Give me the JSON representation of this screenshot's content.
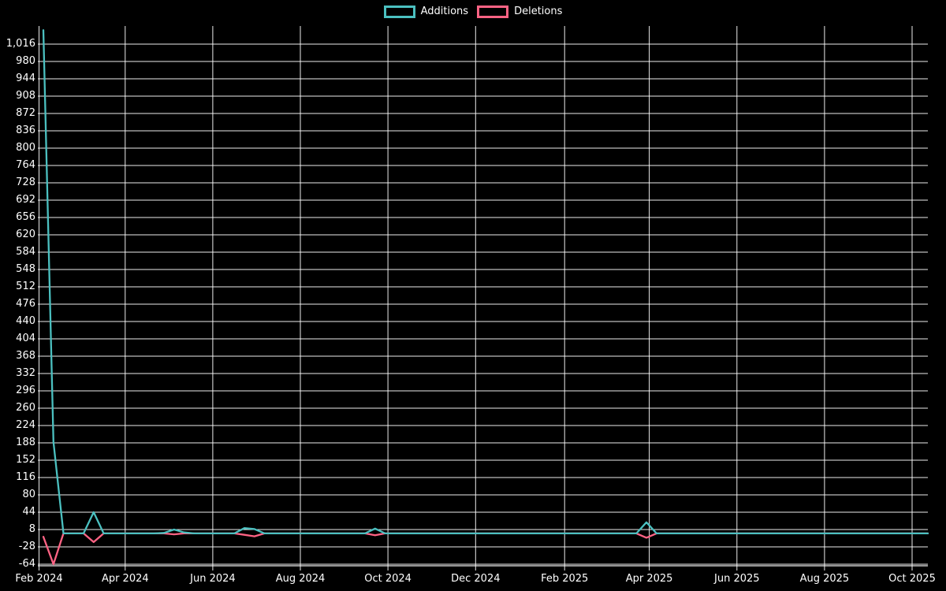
{
  "chart_data": {
    "type": "line",
    "title": "",
    "background_color": "#000000",
    "grid": true,
    "grid_color": "rgba(255,255,255,0.92)",
    "text_color": "#ffffff",
    "legend": {
      "position": "top",
      "items": [
        "Additions",
        "Deletions"
      ]
    },
    "x_axis": {
      "interval": "weekly",
      "start_date": "2024-02-04",
      "end_date": "2025-10-12",
      "ticks": [
        {
          "label": "Feb 2024",
          "date": "2024-02-01"
        },
        {
          "label": "Apr 2024",
          "date": "2024-04-01"
        },
        {
          "label": "Jun 2024",
          "date": "2024-06-01"
        },
        {
          "label": "Aug 2024",
          "date": "2024-08-01"
        },
        {
          "label": "Oct 2024",
          "date": "2024-10-01"
        },
        {
          "label": "Dec 2024",
          "date": "2024-12-01"
        },
        {
          "label": "Feb 2025",
          "date": "2025-02-01"
        },
        {
          "label": "Apr 2025",
          "date": "2025-04-01"
        },
        {
          "label": "Jun 2025",
          "date": "2025-06-01"
        },
        {
          "label": "Aug 2025",
          "date": "2025-08-01"
        },
        {
          "label": "Oct 2025",
          "date": "2025-10-01"
        }
      ]
    },
    "y_axis": {
      "min": -64,
      "max": 1016,
      "step": 36,
      "tick_values": [
        1016,
        980,
        944,
        908,
        872,
        836,
        800,
        764,
        728,
        692,
        656,
        620,
        584,
        548,
        512,
        476,
        440,
        404,
        368,
        332,
        296,
        260,
        224,
        188,
        152,
        116,
        80,
        44,
        8,
        -28,
        -64
      ],
      "tick_labels": [
        "1,016",
        "980",
        "944",
        "908",
        "872",
        "836",
        "800",
        "764",
        "728",
        "692",
        "656",
        "620",
        "584",
        "548",
        "512",
        "476",
        "440",
        "404",
        "368",
        "332",
        "296",
        "260",
        "224",
        "188",
        "152",
        "116",
        "80",
        "44",
        "8",
        "-28",
        "-64"
      ]
    },
    "series": [
      {
        "name": "Additions",
        "color": "#4BC0C0",
        "default_value": 0,
        "points": {
          "2024-02-04": 1045,
          "2024-02-11": 190,
          "2024-03-10": 44,
          "2024-04-28": 1,
          "2024-05-05": 8,
          "2024-05-12": 2,
          "2024-06-23": 11,
          "2024-06-30": 9,
          "2024-09-22": 10,
          "2025-03-30": 23
        }
      },
      {
        "name": "Deletions",
        "color": "#FF6384",
        "default_value": 0,
        "points": {
          "2024-02-04": -7,
          "2024-02-11": -64,
          "2024-03-10": -18,
          "2024-05-05": -2,
          "2024-06-23": -3,
          "2024-06-30": -6,
          "2024-09-22": -4,
          "2025-03-30": -9
        }
      }
    ]
  }
}
